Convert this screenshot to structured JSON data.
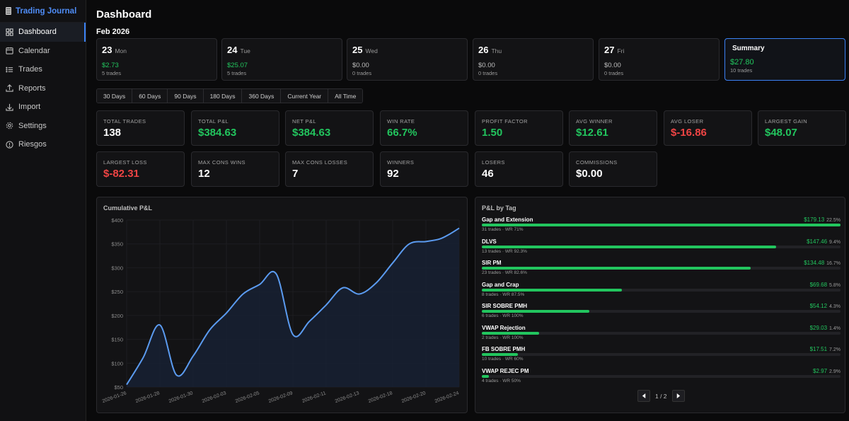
{
  "app": {
    "title": "Trading Journal"
  },
  "nav": [
    {
      "label": "Dashboard",
      "icon": "grid-icon",
      "active": true
    },
    {
      "label": "Calendar",
      "icon": "calendar-icon"
    },
    {
      "label": "Trades",
      "icon": "list-icon"
    },
    {
      "label": "Reports",
      "icon": "upload-icon"
    },
    {
      "label": "Import",
      "icon": "download-icon"
    },
    {
      "label": "Settings",
      "icon": "gear-icon"
    },
    {
      "label": "Riesgos",
      "icon": "alert-circle-icon"
    }
  ],
  "page": {
    "title": "Dashboard",
    "week_label": "Feb 2026"
  },
  "days": [
    {
      "num": "23",
      "weekday": "Mon",
      "pnl": "$2.73",
      "trades": "5 trades",
      "sign": "pos"
    },
    {
      "num": "24",
      "weekday": "Tue",
      "pnl": "$25.07",
      "trades": "5 trades",
      "sign": "pos"
    },
    {
      "num": "25",
      "weekday": "Wed",
      "pnl": "$0.00",
      "trades": "0 trades",
      "sign": "zero"
    },
    {
      "num": "26",
      "weekday": "Thu",
      "pnl": "$0.00",
      "trades": "0 trades",
      "sign": "zero"
    },
    {
      "num": "27",
      "weekday": "Fri",
      "pnl": "$0.00",
      "trades": "0 trades",
      "sign": "zero"
    }
  ],
  "summary": {
    "title": "Summary",
    "pnl": "$27.80",
    "trades": "10 trades"
  },
  "ranges": [
    "30 Days",
    "60 Days",
    "90 Days",
    "180 Days",
    "360 Days",
    "Current Year",
    "All Time"
  ],
  "stats": [
    {
      "label": "Total Trades",
      "value": "138",
      "sign": ""
    },
    {
      "label": "Total P&L",
      "value": "$384.63",
      "sign": "pos"
    },
    {
      "label": "Net P&L",
      "value": "$384.63",
      "sign": "pos"
    },
    {
      "label": "Win Rate",
      "value": "66.7%",
      "sign": "pos"
    },
    {
      "label": "Profit Factor",
      "value": "1.50",
      "sign": "pos"
    },
    {
      "label": "Avg Winner",
      "value": "$12.61",
      "sign": "pos"
    },
    {
      "label": "Avg Loser",
      "value": "$-16.86",
      "sign": "neg"
    },
    {
      "label": "Largest Gain",
      "value": "$48.07",
      "sign": "pos"
    },
    {
      "label": "Largest Loss",
      "value": "$-82.31",
      "sign": "neg"
    },
    {
      "label": "Max Cons Wins",
      "value": "12",
      "sign": ""
    },
    {
      "label": "Max Cons Losses",
      "value": "7",
      "sign": ""
    },
    {
      "label": "Winners",
      "value": "92",
      "sign": ""
    },
    {
      "label": "Losers",
      "value": "46",
      "sign": ""
    },
    {
      "label": "Commissions",
      "value": "$0.00",
      "sign": ""
    }
  ],
  "cumulative_panel": {
    "title": "Cumulative P&L"
  },
  "chart_data": {
    "type": "area",
    "title": "Cumulative P&L",
    "xlabel": "",
    "ylabel": "",
    "x_ticks": [
      "2026-01-26",
      "2026-01-28",
      "2026-01-30",
      "2026-02-03",
      "2026-02-05",
      "2026-02-09",
      "2026-02-11",
      "2026-02-13",
      "2026-02-18",
      "2026-02-20",
      "2026-02-24"
    ],
    "y_ticks": [
      "$50",
      "$100",
      "$150",
      "$200",
      "$250",
      "$300",
      "$350",
      "$400"
    ],
    "ylim": [
      50,
      400
    ],
    "series": [
      {
        "name": "Cumulative P&L",
        "x": [
          0,
          0.5,
          1,
          1.5,
          2,
          2.5,
          3,
          3.5,
          4,
          4.5,
          5,
          5.5,
          6,
          6.5,
          7,
          7.5,
          8,
          8.5,
          9,
          9.4,
          9.7,
          10
        ],
        "values": [
          55,
          112,
          180,
          75,
          115,
          170,
          205,
          245,
          265,
          287,
          160,
          188,
          222,
          258,
          245,
          268,
          310,
          350,
          355,
          360,
          370,
          383
        ]
      }
    ],
    "colors": {
      "line": "#5b9bf0",
      "fill": "#172133",
      "grid": "#1d1d21",
      "axis_text": "#8a8a8a"
    }
  },
  "tags_panel": {
    "title": "P&L by Tag"
  },
  "tags": [
    {
      "name": "Gap and Extension",
      "pnl": "$179.13",
      "pct": "22.5%",
      "sub": "31 trades · WR 71%",
      "fill": 1.0
    },
    {
      "name": "DLVS",
      "pnl": "$147.46",
      "pct": "9.4%",
      "sub": "13 trades · WR 92.3%",
      "fill": 0.82
    },
    {
      "name": "SIR PM",
      "pnl": "$134.48",
      "pct": "16.7%",
      "sub": "23 trades · WR 82.6%",
      "fill": 0.75
    },
    {
      "name": "Gap and Crap",
      "pnl": "$69.68",
      "pct": "5.8%",
      "sub": "8 trades · WR 87.5%",
      "fill": 0.39
    },
    {
      "name": "SIR SOBRE PMH",
      "pnl": "$54.12",
      "pct": "4.3%",
      "sub": "6 trades · WR 100%",
      "fill": 0.3
    },
    {
      "name": "VWAP Rejection",
      "pnl": "$29.03",
      "pct": "1.4%",
      "sub": "2 trades · WR 100%",
      "fill": 0.16
    },
    {
      "name": "FB SOBRE PMH",
      "pnl": "$17.51",
      "pct": "7.2%",
      "sub": "10 trades · WR 60%",
      "fill": 0.1
    },
    {
      "name": "VWAP REJEC PM",
      "pnl": "$2.97",
      "pct": "2.9%",
      "sub": "4 trades · WR 50%",
      "fill": 0.02
    }
  ],
  "pager": {
    "text": "1 / 2"
  }
}
